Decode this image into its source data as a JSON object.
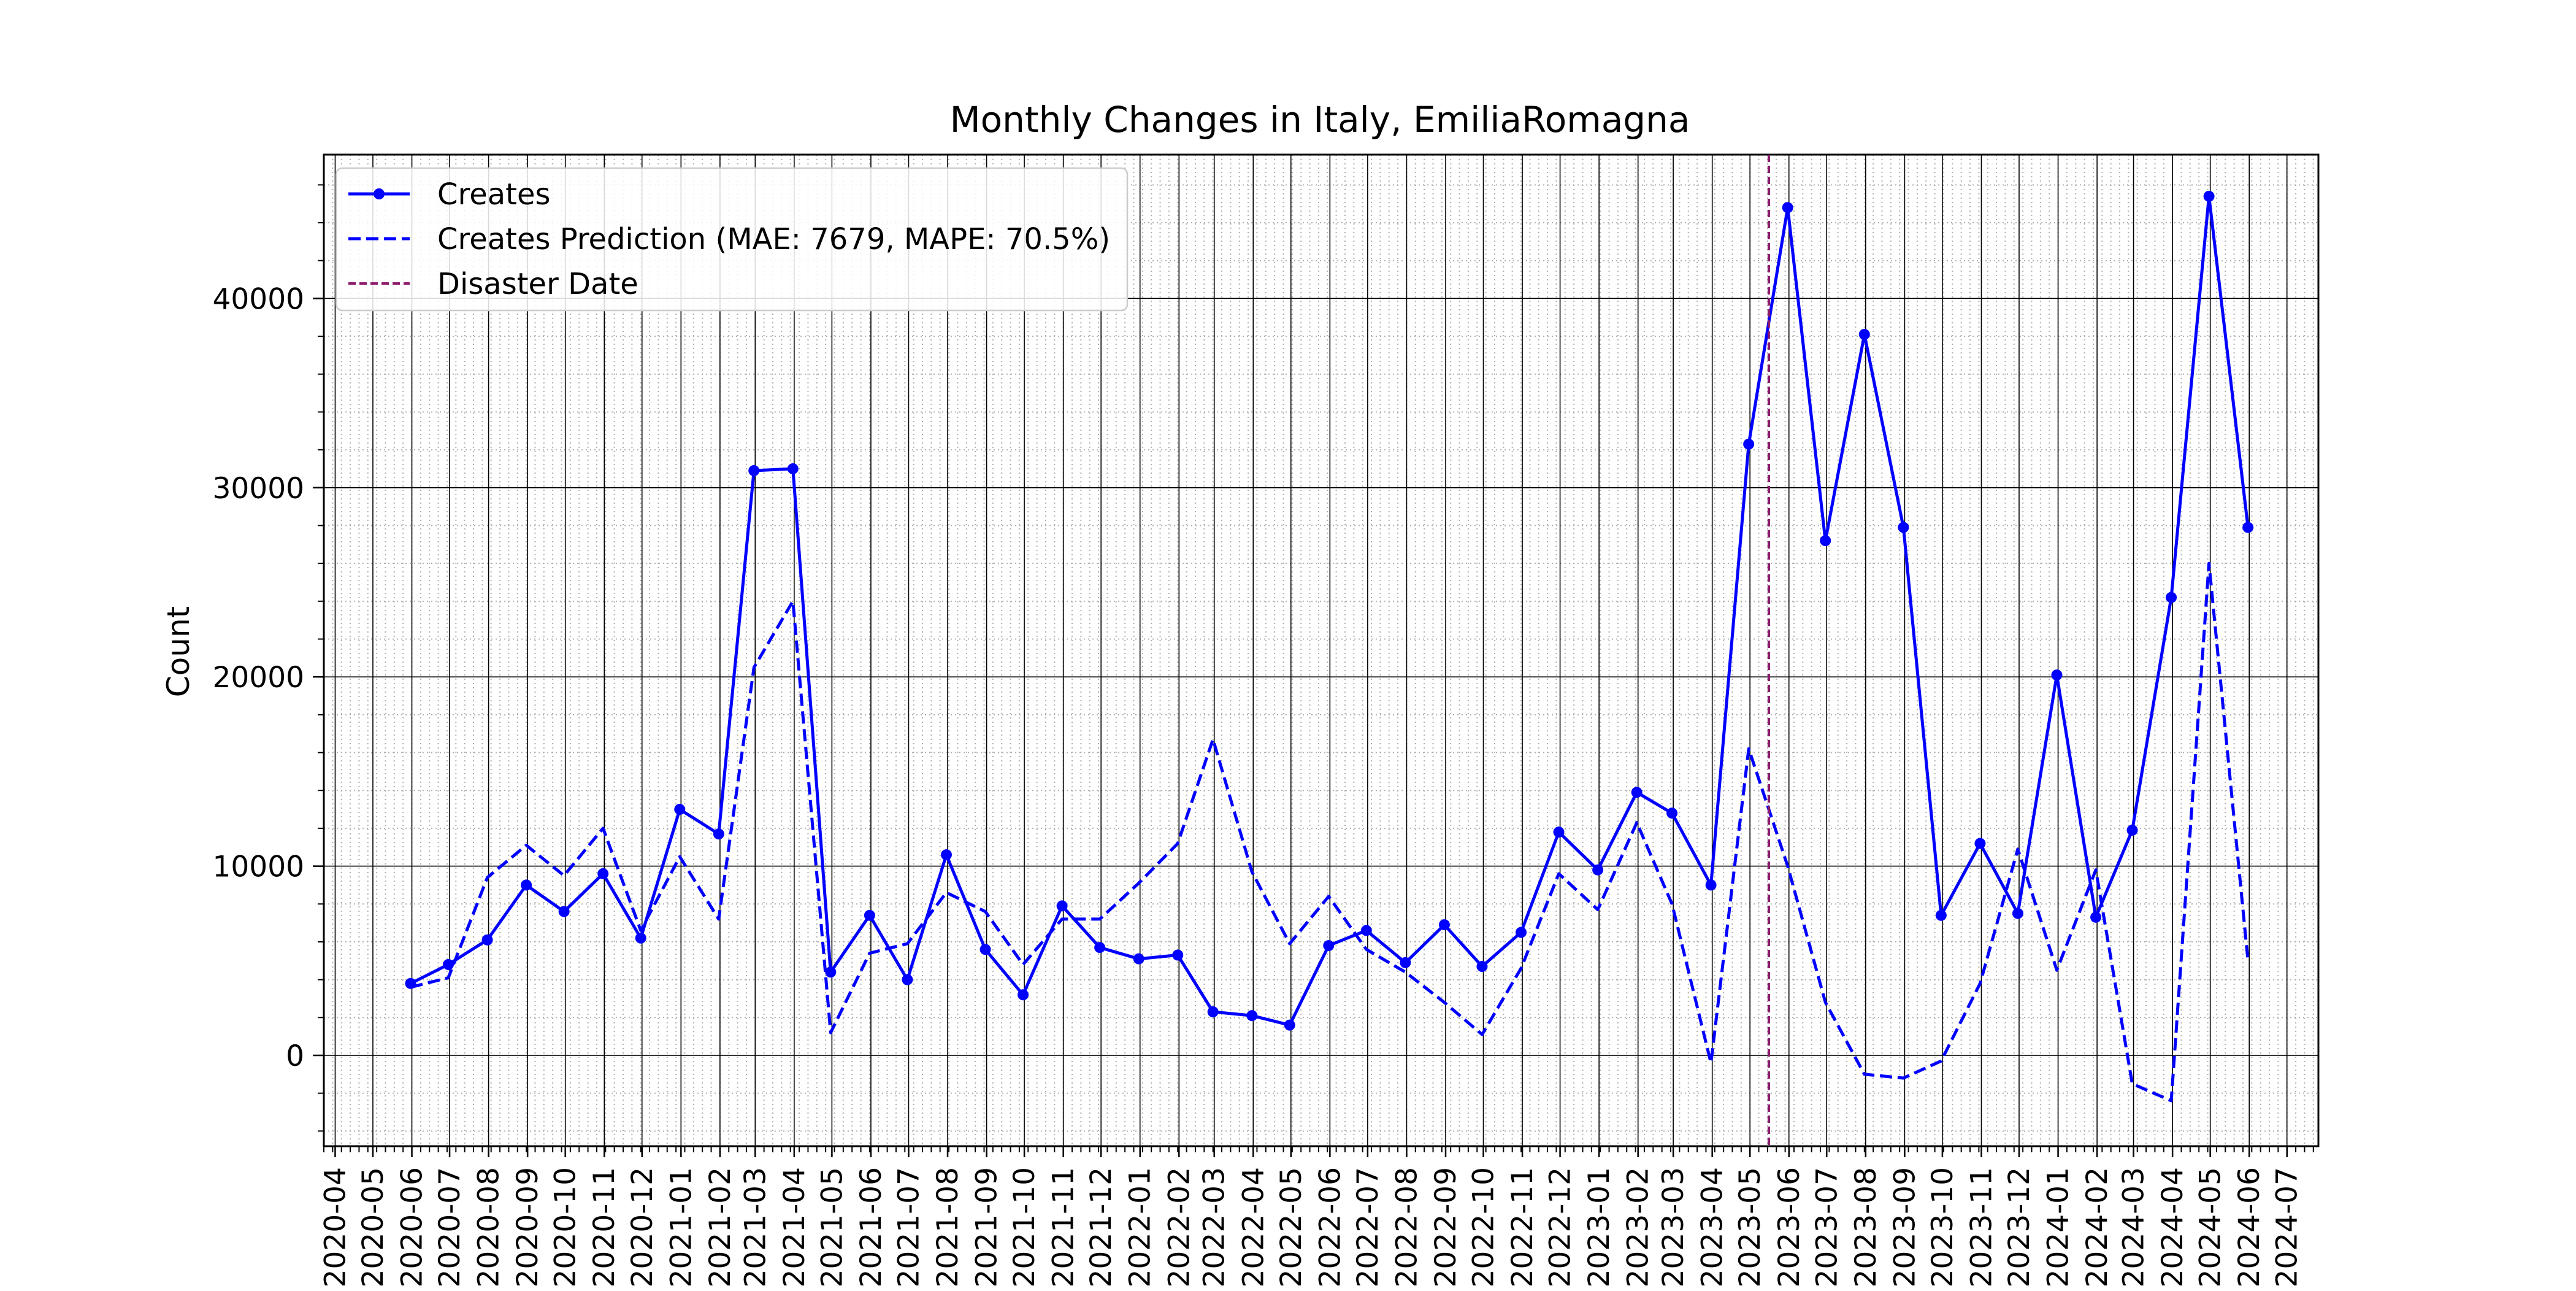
{
  "chart_data": {
    "type": "line",
    "title": "Monthly Changes in Italy, EmiliaRomagna",
    "xlabel": "",
    "ylabel": "Count",
    "x_tick_labels": [
      "2020-04",
      "2020-05",
      "2020-06",
      "2020-07",
      "2020-08",
      "2020-09",
      "2020-10",
      "2020-11",
      "2020-12",
      "2021-01",
      "2021-02",
      "2021-03",
      "2021-04",
      "2021-05",
      "2021-06",
      "2021-07",
      "2021-08",
      "2021-09",
      "2021-10",
      "2021-11",
      "2021-12",
      "2022-01",
      "2022-02",
      "2022-03",
      "2022-04",
      "2022-05",
      "2022-06",
      "2022-07",
      "2022-08",
      "2022-09",
      "2022-10",
      "2022-11",
      "2022-12",
      "2023-01",
      "2023-02",
      "2023-03",
      "2023-04",
      "2023-05",
      "2023-06",
      "2023-07",
      "2023-08",
      "2023-09",
      "2023-10",
      "2023-11",
      "2023-12",
      "2024-01",
      "2024-02",
      "2024-03",
      "2024-04",
      "2024-05",
      "2024-06",
      "2024-07"
    ],
    "y_ticks": [
      0,
      10000,
      20000,
      30000,
      40000
    ],
    "y_tick_labels": [
      "0",
      "10000",
      "20000",
      "30000",
      "40000"
    ],
    "ylim": [
      -4800,
      47600
    ],
    "x_range": [
      "2020-03-23",
      "2024-07-26"
    ],
    "grid": true,
    "legend_position": "top-left",
    "dates": [
      "2020-05-31",
      "2020-06-30",
      "2020-07-31",
      "2020-08-31",
      "2020-09-30",
      "2020-10-31",
      "2020-11-30",
      "2020-12-31",
      "2021-01-31",
      "2021-02-28",
      "2021-03-31",
      "2021-04-30",
      "2021-05-31",
      "2021-06-30",
      "2021-07-31",
      "2021-08-31",
      "2021-09-30",
      "2021-10-31",
      "2021-11-30",
      "2021-12-31",
      "2022-01-31",
      "2022-02-28",
      "2022-03-31",
      "2022-04-30",
      "2022-05-31",
      "2022-06-30",
      "2022-07-31",
      "2022-08-31",
      "2022-09-30",
      "2022-10-31",
      "2022-11-30",
      "2022-12-31",
      "2023-01-31",
      "2023-02-28",
      "2023-03-31",
      "2023-04-30",
      "2023-05-31",
      "2023-06-30",
      "2023-07-31",
      "2023-08-31",
      "2023-09-30",
      "2023-10-31",
      "2023-11-30",
      "2023-12-31",
      "2024-01-31",
      "2024-02-29",
      "2024-03-31",
      "2024-04-30",
      "2024-05-31"
    ],
    "series": [
      {
        "name": "Creates",
        "color": "#0000ff",
        "style": "solid-markers",
        "values": [
          3800,
          4800,
          6100,
          9000,
          7600,
          9600,
          6200,
          13000,
          11700,
          30900,
          31000,
          4400,
          7400,
          4000,
          10600,
          5600,
          3200,
          7900,
          5700,
          5100,
          5300,
          2300,
          2100,
          1600,
          5800,
          6600,
          4900,
          6900,
          4700,
          6500,
          11800,
          9800,
          13900,
          12800,
          9000,
          32300,
          44800,
          27200,
          38100,
          27900,
          7400,
          11200,
          7500,
          20100,
          7300,
          11900,
          24200,
          45400,
          27900
        ]
      },
      {
        "name": "Creates Prediction (MAE: 7679, MAPE: 70.5%)",
        "color": "#0000ff",
        "style": "dashed",
        "values": [
          3600,
          4100,
          9400,
          11100,
          9500,
          12000,
          6600,
          10500,
          7200,
          20500,
          24000,
          1200,
          5400,
          5900,
          8600,
          7600,
          4800,
          7200,
          7200,
          9100,
          11200,
          16700,
          9700,
          5900,
          8400,
          5600,
          4400,
          2800,
          1100,
          4600,
          9600,
          7700,
          12300,
          8000,
          -400,
          16200,
          10000,
          2800,
          -1000,
          -1200,
          -300,
          3800,
          10900,
          4500,
          9800,
          -1500,
          -2400,
          26000,
          5000
        ]
      }
    ],
    "disaster": {
      "name": "Disaster Date",
      "date": "2023-05-16",
      "color": "#8b1a6b"
    }
  }
}
